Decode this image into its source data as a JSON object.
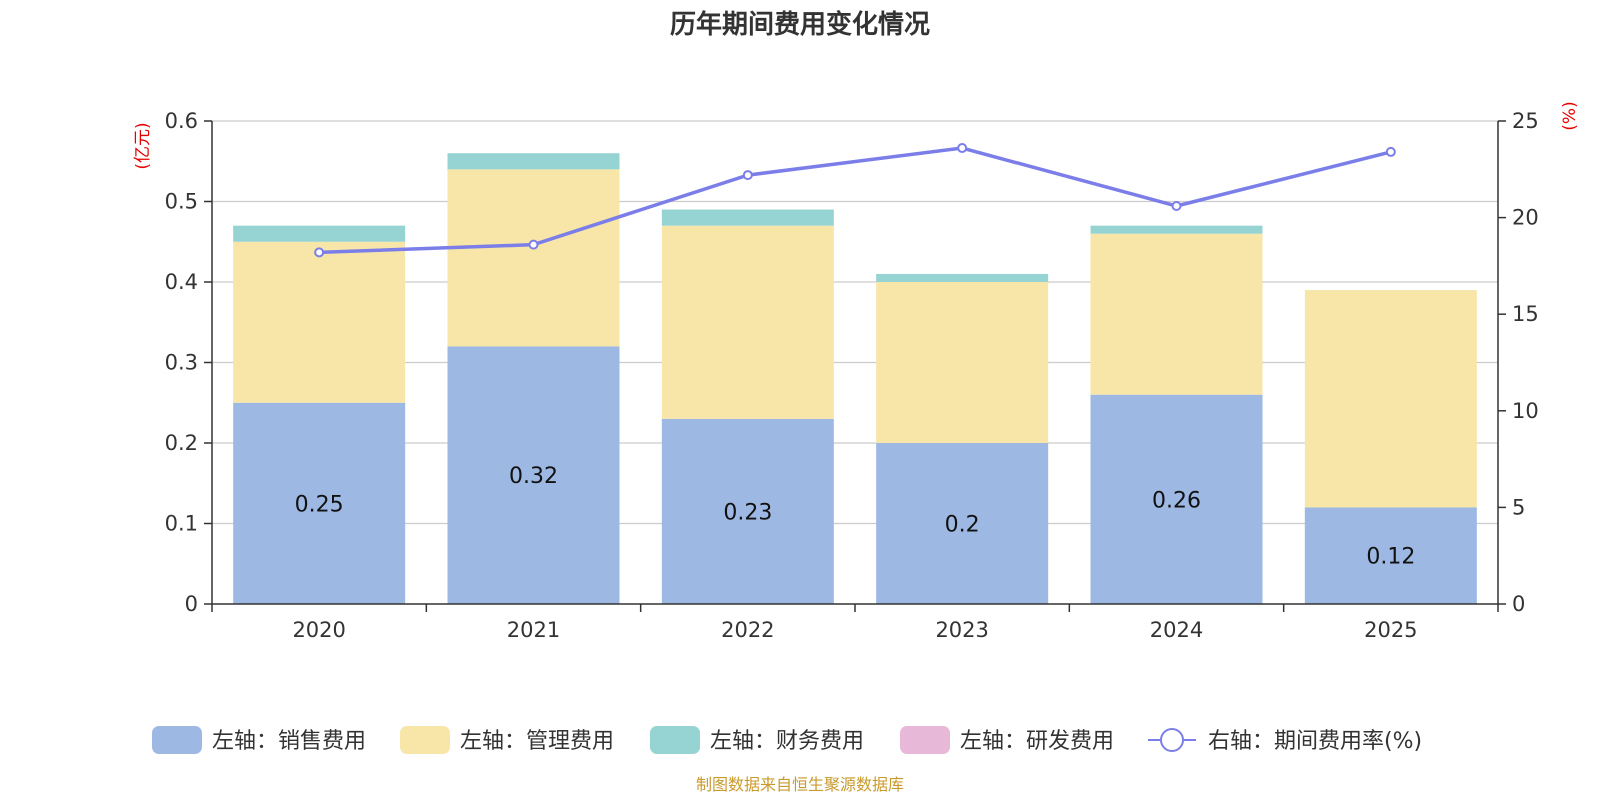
{
  "chart_data": {
    "type": "bar",
    "stacked": true,
    "title": "历年期间费用变化情况",
    "categories": [
      "2020",
      "2021",
      "2022",
      "2023",
      "2024",
      "2025"
    ],
    "series": [
      {
        "name": "左轴：销售费用",
        "axis": "left",
        "color": "#9db8e2",
        "values": [
          0.25,
          0.32,
          0.23,
          0.2,
          0.26,
          0.12
        ],
        "data_labels": [
          "0.25",
          "0.32",
          "0.23",
          "0.2",
          "0.26",
          "0.12"
        ]
      },
      {
        "name": "左轴：管理费用",
        "axis": "left",
        "color": "#f7e6a8",
        "values": [
          0.2,
          0.22,
          0.24,
          0.2,
          0.2,
          0.27
        ]
      },
      {
        "name": "左轴：财务费用",
        "axis": "left",
        "color": "#96d3d3",
        "values": [
          0.02,
          0.02,
          0.02,
          0.01,
          0.01,
          0.0
        ]
      },
      {
        "name": "左轴：研发费用",
        "axis": "left",
        "color": "#e8b8d8",
        "values": [
          0,
          0,
          0,
          0,
          0,
          0
        ]
      },
      {
        "name": "右轴：期间费用率(%)",
        "axis": "right",
        "type": "line",
        "color": "#7b7ee8",
        "values": [
          18.2,
          18.6,
          22.2,
          23.6,
          20.6,
          23.4
        ]
      }
    ],
    "left_axis": {
      "label": "(亿元)",
      "ylim": [
        0,
        0.6
      ],
      "ticks": [
        "0",
        "0.1",
        "0.2",
        "0.3",
        "0.4",
        "0.5",
        "0.6"
      ],
      "tick_values": [
        0,
        0.1,
        0.2,
        0.3,
        0.4,
        0.5,
        0.6
      ]
    },
    "right_axis": {
      "label": "(%)",
      "ylim": [
        0,
        25
      ],
      "ticks": [
        "0",
        "5",
        "10",
        "15",
        "20",
        "25"
      ],
      "tick_values": [
        0,
        5,
        10,
        15,
        20,
        25
      ]
    },
    "grid": true,
    "legend_position": "bottom",
    "source": "制图数据来自恒生聚源数据库"
  }
}
